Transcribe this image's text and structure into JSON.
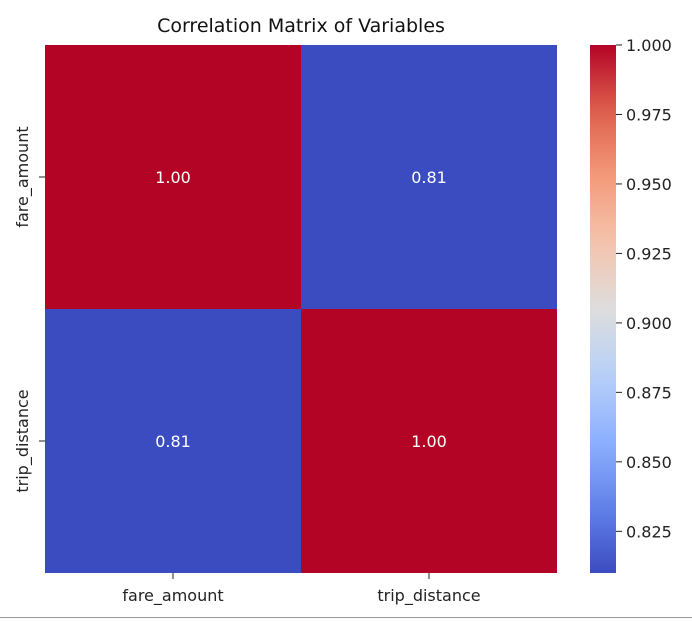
{
  "chart_data": {
    "type": "heatmap",
    "title": "Correlation Matrix of Variables",
    "xlabel": "",
    "ylabel": "",
    "x_categories": [
      "fare_amount",
      "trip_distance"
    ],
    "y_categories": [
      "fare_amount",
      "trip_distance"
    ],
    "values": [
      [
        1.0,
        0.81
      ],
      [
        0.81,
        1.0
      ]
    ],
    "cell_labels": [
      [
        "1.00",
        "0.81"
      ],
      [
        "0.81",
        "1.00"
      ]
    ],
    "colormap": "coolwarm",
    "color_range": [
      0.81,
      1.0
    ],
    "colorbar": {
      "ticks": [
        0.825,
        0.85,
        0.875,
        0.9,
        0.925,
        0.95,
        0.975,
        1.0
      ],
      "tick_labels": [
        "0.825",
        "0.850",
        "0.875",
        "0.900",
        "0.925",
        "0.950",
        "0.975",
        "1.000"
      ],
      "position": "right"
    },
    "grid": false
  }
}
